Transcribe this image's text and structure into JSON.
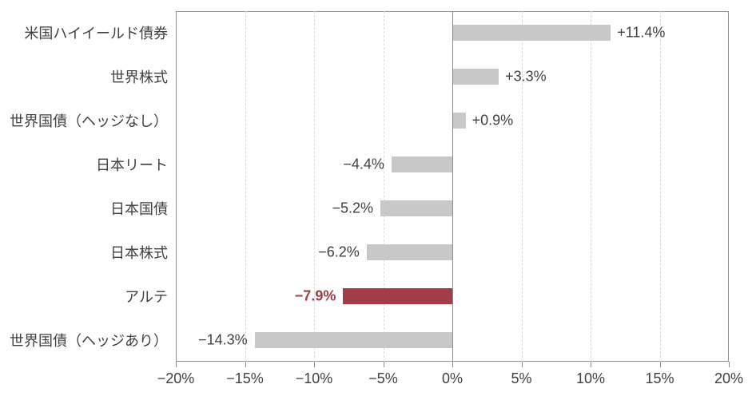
{
  "chart_data": {
    "type": "bar",
    "orientation": "horizontal",
    "title": "",
    "xlabel": "",
    "ylabel": "",
    "categories": [
      "米国ハイイールド債券",
      "世界株式",
      "世界国債（ヘッジなし）",
      "日本リート",
      "日本国債",
      "日本株式",
      "アルテ",
      "世界国債（ヘッジあり）"
    ],
    "values": [
      11.4,
      3.3,
      0.9,
      -4.4,
      -5.2,
      -6.2,
      -7.9,
      -14.3
    ],
    "value_labels": [
      "+11.4%",
      "+3.3%",
      "+0.9%",
      "−4.4%",
      "−5.2%",
      "−6.2%",
      "−7.9%",
      "−14.3%"
    ],
    "highlight_index": 6,
    "xlim": [
      -20,
      20
    ],
    "x_ticks": [
      -20,
      -15,
      -10,
      -5,
      0,
      5,
      10,
      15,
      20
    ],
    "x_tick_labels": [
      "−20%",
      "−15%",
      "−10%",
      "−5%",
      "0%",
      "5%",
      "10%",
      "15%",
      "20%"
    ],
    "grid": true,
    "legend": false,
    "colors": {
      "bar": "#c8c8c8",
      "highlight_bar": "#a23c46",
      "text": "#404040",
      "highlight_text": "#a23c46",
      "gridline": "#d9d9d9",
      "border": "#909090",
      "zero_line": "#8c8c8c",
      "background": "#ffffff"
    }
  }
}
